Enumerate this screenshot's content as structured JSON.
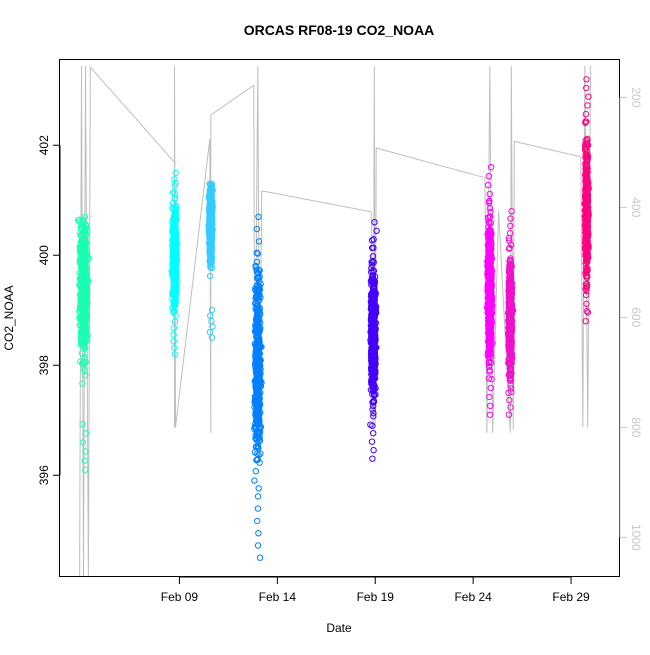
{
  "chart_data": {
    "type": "scatter",
    "title": "ORCAS RF08-19 CO2_NOAA",
    "xlabel": "Date",
    "ylabel": "CO2_NOAA",
    "x_unit": "days (Feb 2016)",
    "xlim": [
      2.9,
      31.5
    ],
    "ylim": [
      394.15,
      403.55
    ],
    "y2lim": [
      1072,
      132
    ],
    "x_ticks": [
      {
        "value": 9,
        "label": "Feb 09"
      },
      {
        "value": 14,
        "label": "Feb 14"
      },
      {
        "value": 19,
        "label": "Feb 19"
      },
      {
        "value": 24,
        "label": "Feb 24"
      },
      {
        "value": 29,
        "label": "Feb 29"
      }
    ],
    "y_ticks": [
      {
        "value": 396,
        "label": "396"
      },
      {
        "value": 398,
        "label": "398"
      },
      {
        "value": 400,
        "label": "400"
      },
      {
        "value": 402,
        "label": "402"
      }
    ],
    "y2_ticks": [
      {
        "value": 200,
        "label": "200"
      },
      {
        "value": 400,
        "label": "400"
      },
      {
        "value": 600,
        "label": "600"
      },
      {
        "value": 800,
        "label": "800"
      },
      {
        "value": 1000,
        "label": "1000"
      }
    ],
    "y2_color": "#c8c8c8",
    "pressure_trace_color": "#bebebe",
    "series": [
      {
        "color": "#1affb2",
        "x_center": 4.1,
        "x_spread": 0.45,
        "min": 396.1,
        "max": 400.7,
        "mean": 399.4
      },
      {
        "color": "#00ffff",
        "x_center": 8.75,
        "x_spread": 0.25,
        "min": 398.2,
        "max": 401.5,
        "mean": 400.0
      },
      {
        "color": "#33ccff",
        "x_center": 10.6,
        "x_spread": 0.18,
        "min": 398.5,
        "max": 401.3,
        "mean": 400.6
      },
      {
        "color": "#0080ff",
        "x_center": 13.0,
        "x_spread": 0.35,
        "min": 394.5,
        "max": 400.7,
        "mean": 398.0
      },
      {
        "color": "#4400ff",
        "x_center": 18.9,
        "x_spread": 0.3,
        "min": 396.3,
        "max": 400.6,
        "mean": 398.6
      },
      {
        "color": "#ff00ff",
        "x_center": 24.85,
        "x_spread": 0.25,
        "min": 397.1,
        "max": 401.6,
        "mean": 399.3
      },
      {
        "color": "#ee11cc",
        "x_center": 25.9,
        "x_spread": 0.22,
        "min": 397.1,
        "max": 400.8,
        "mean": 398.9
      },
      {
        "color": "#ff0080",
        "x_center": 29.8,
        "x_spread": 0.2,
        "min": 398.8,
        "max": 403.2,
        "mean": 400.8
      }
    ],
    "pressure_trace": [
      [
        3.9,
        1072
      ],
      [
        4.0,
        143
      ],
      [
        4.1,
        1072
      ],
      [
        4.2,
        143
      ],
      [
        4.35,
        1072
      ],
      [
        4.45,
        145
      ],
      [
        8.75,
        318
      ],
      [
        8.75,
        800
      ],
      [
        8.75,
        143
      ],
      [
        8.8,
        800
      ],
      [
        10.55,
        276
      ],
      [
        10.6,
        810
      ],
      [
        10.6,
        232
      ],
      [
        12.8,
        178
      ],
      [
        12.85,
        810
      ],
      [
        13.0,
        143
      ],
      [
        13.1,
        810
      ],
      [
        13.2,
        370
      ],
      [
        18.8,
        408
      ],
      [
        18.9,
        800
      ],
      [
        18.95,
        143
      ],
      [
        19.0,
        800
      ],
      [
        19.05,
        292
      ],
      [
        24.6,
        346
      ],
      [
        24.7,
        810
      ],
      [
        24.85,
        143
      ],
      [
        25.0,
        810
      ],
      [
        25.3,
        406
      ],
      [
        25.9,
        810
      ],
      [
        25.95,
        143
      ],
      [
        26.05,
        805
      ],
      [
        26.1,
        280
      ],
      [
        29.5,
        308
      ],
      [
        29.6,
        800
      ],
      [
        29.7,
        143
      ],
      [
        29.85,
        800
      ],
      [
        30.0,
        143
      ]
    ]
  }
}
